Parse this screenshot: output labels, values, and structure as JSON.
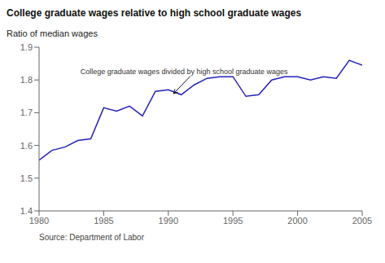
{
  "chart_data": {
    "type": "line",
    "title": "College graduate wages relative to high school graduate wages",
    "y_label": "Ratio of median wages",
    "source": "Source: Department of Labor",
    "annotations": [
      {
        "text": "College graduate wages divided by high school graduate wages",
        "xy": [
          1990.4,
          1.758
        ],
        "text_xy": [
          1983.2,
          1.825
        ]
      }
    ],
    "x": [
      1980,
      1981,
      1982,
      1983,
      1984,
      1985,
      1986,
      1987,
      1988,
      1989,
      1990,
      1991,
      1992,
      1993,
      1994,
      1995,
      1996,
      1997,
      1998,
      1999,
      2000,
      2001,
      2002,
      2003,
      2004,
      2005
    ],
    "values": [
      1.555,
      1.585,
      1.595,
      1.615,
      1.62,
      1.715,
      1.705,
      1.72,
      1.69,
      1.765,
      1.77,
      1.755,
      1.785,
      1.805,
      1.81,
      1.81,
      1.75,
      1.755,
      1.8,
      1.81,
      1.81,
      1.8,
      1.81,
      1.805,
      1.86,
      1.845
    ],
    "color": "#2222bb",
    "xlim": [
      1980,
      2005
    ],
    "ylim": [
      1.4,
      1.9
    ],
    "xticks": [
      1980,
      1985,
      1990,
      1995,
      2000,
      2005
    ],
    "yticks": [
      1.4,
      1.5,
      1.6,
      1.7,
      1.8,
      1.9
    ],
    "grid": false
  }
}
